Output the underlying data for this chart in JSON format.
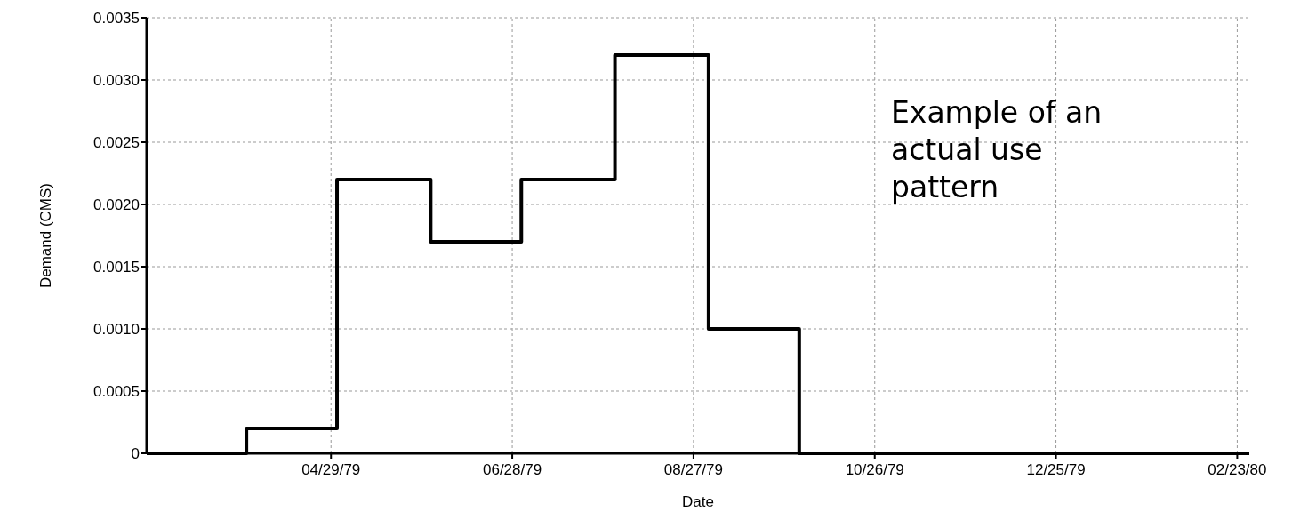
{
  "chart_data": {
    "type": "step",
    "xlabel": "Date",
    "ylabel": "Demand (CMS)",
    "x": [
      "1979-02-27",
      "1979-04-01",
      "1979-05-01",
      "1979-06-01",
      "1979-07-01",
      "1979-08-01",
      "1979-09-01",
      "1979-10-01",
      "1980-02-27"
    ],
    "series": [
      {
        "color": "#000000",
        "values": [
          0,
          0.0002,
          0.0022,
          0.0017,
          0.0022,
          0.0032,
          0.001,
          0,
          0
        ]
      }
    ],
    "xlim": [
      "1979-02-27",
      "1980-02-27"
    ],
    "xticks": [
      {
        "value": "1979-04-29",
        "label": "04/29/79"
      },
      {
        "value": "1979-06-28",
        "label": "06/28/79"
      },
      {
        "value": "1979-08-27",
        "label": "08/27/79"
      },
      {
        "value": "1979-10-26",
        "label": "10/26/79"
      },
      {
        "value": "1979-12-25",
        "label": "12/25/79"
      },
      {
        "value": "1980-02-23",
        "label": "02/23/80"
      }
    ],
    "ylim": [
      0,
      0.0035
    ],
    "yticks": [
      0,
      {
        "value": 0.0005,
        "label": "0.0005"
      },
      {
        "value": 0.001,
        "label": "0.0010"
      },
      {
        "value": 0.0015,
        "label": "0.0015"
      },
      {
        "value": 0.002,
        "label": "0.0020"
      },
      {
        "value": 0.0025,
        "label": "0.0025"
      },
      {
        "value": 0.003,
        "label": "0.0030"
      },
      {
        "value": 0.0035,
        "label": "0.0035"
      }
    ],
    "grid": true,
    "line_style": "solid",
    "marker": "none",
    "annotations": [
      "Example of an actual use pattern"
    ]
  }
}
